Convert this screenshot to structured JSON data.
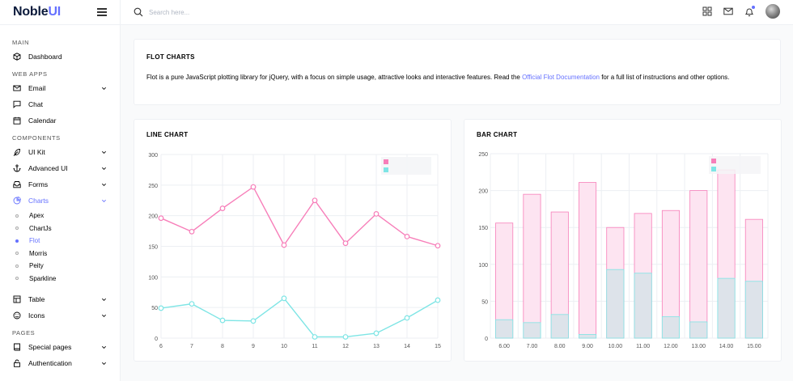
{
  "brand": {
    "name_main": "Noble",
    "name_accent": "UI"
  },
  "search": {
    "placeholder": "Search here..."
  },
  "sidebar": {
    "categories": [
      "MAIN",
      "WEB APPS",
      "COMPONENTS",
      "PAGES"
    ],
    "items": {
      "dashboard": "Dashboard",
      "email": "Email",
      "chat": "Chat",
      "calendar": "Calendar",
      "ui_kit": "UI Kit",
      "advanced_ui": "Advanced UI",
      "forms": "Forms",
      "charts": "Charts",
      "table": "Table",
      "icons": "Icons",
      "special_pages": "Special pages",
      "authentication": "Authentication"
    },
    "chart_subitems": [
      "Apex",
      "ChartJs",
      "Flot",
      "Morris",
      "Peity",
      "Sparkline"
    ],
    "active_item": "Charts",
    "active_subitem": "Flot"
  },
  "intro": {
    "title": "FLOT CHARTS",
    "text_before": "Flot is a pure JavaScript plotting library for jQuery, with a focus on simple usage, attractive looks and interactive features. Read the ",
    "link": "Official Flot Documentation",
    "text_after": " for a full list of instructions and other options."
  },
  "colors": {
    "accent": "#6571ff",
    "pink": "#f77eb9",
    "cyan": "#7ee5e5"
  },
  "chart_data": [
    {
      "type": "line",
      "title": "LINE CHART",
      "x": [
        6,
        7,
        8,
        9,
        10,
        11,
        12,
        13,
        14,
        15
      ],
      "xticks": [
        "6",
        "7",
        "8",
        "9",
        "10",
        "11",
        "12",
        "13",
        "14",
        "15"
      ],
      "yticks": [
        "0",
        "50",
        "100",
        "150",
        "200",
        "250",
        "300"
      ],
      "ylim": [
        0,
        300
      ],
      "grid": true,
      "legend_position": "top-right",
      "series": [
        {
          "values": [
            196,
            174,
            212,
            247,
            152,
            225,
            155,
            203,
            166,
            151
          ]
        },
        {
          "values": [
            49,
            56,
            29,
            28,
            65,
            2,
            2,
            8,
            33,
            62
          ]
        }
      ]
    },
    {
      "type": "bar",
      "title": "BAR CHART",
      "categories": [
        "6.00",
        "7.00",
        "8.00",
        "9.00",
        "10.00",
        "11.00",
        "12.00",
        "13.00",
        "14.00",
        "15.00"
      ],
      "yticks": [
        "0",
        "50",
        "100",
        "150",
        "200",
        "250"
      ],
      "ylim": [
        0,
        250
      ],
      "grid": true,
      "legend_position": "top-right",
      "series": [
        {
          "values": [
            156,
            195,
            171,
            211,
            150,
            169,
            173,
            200,
            228,
            161
          ]
        },
        {
          "values": [
            25,
            21,
            32,
            5,
            93,
            88,
            29,
            22,
            81,
            77
          ]
        }
      ]
    }
  ]
}
